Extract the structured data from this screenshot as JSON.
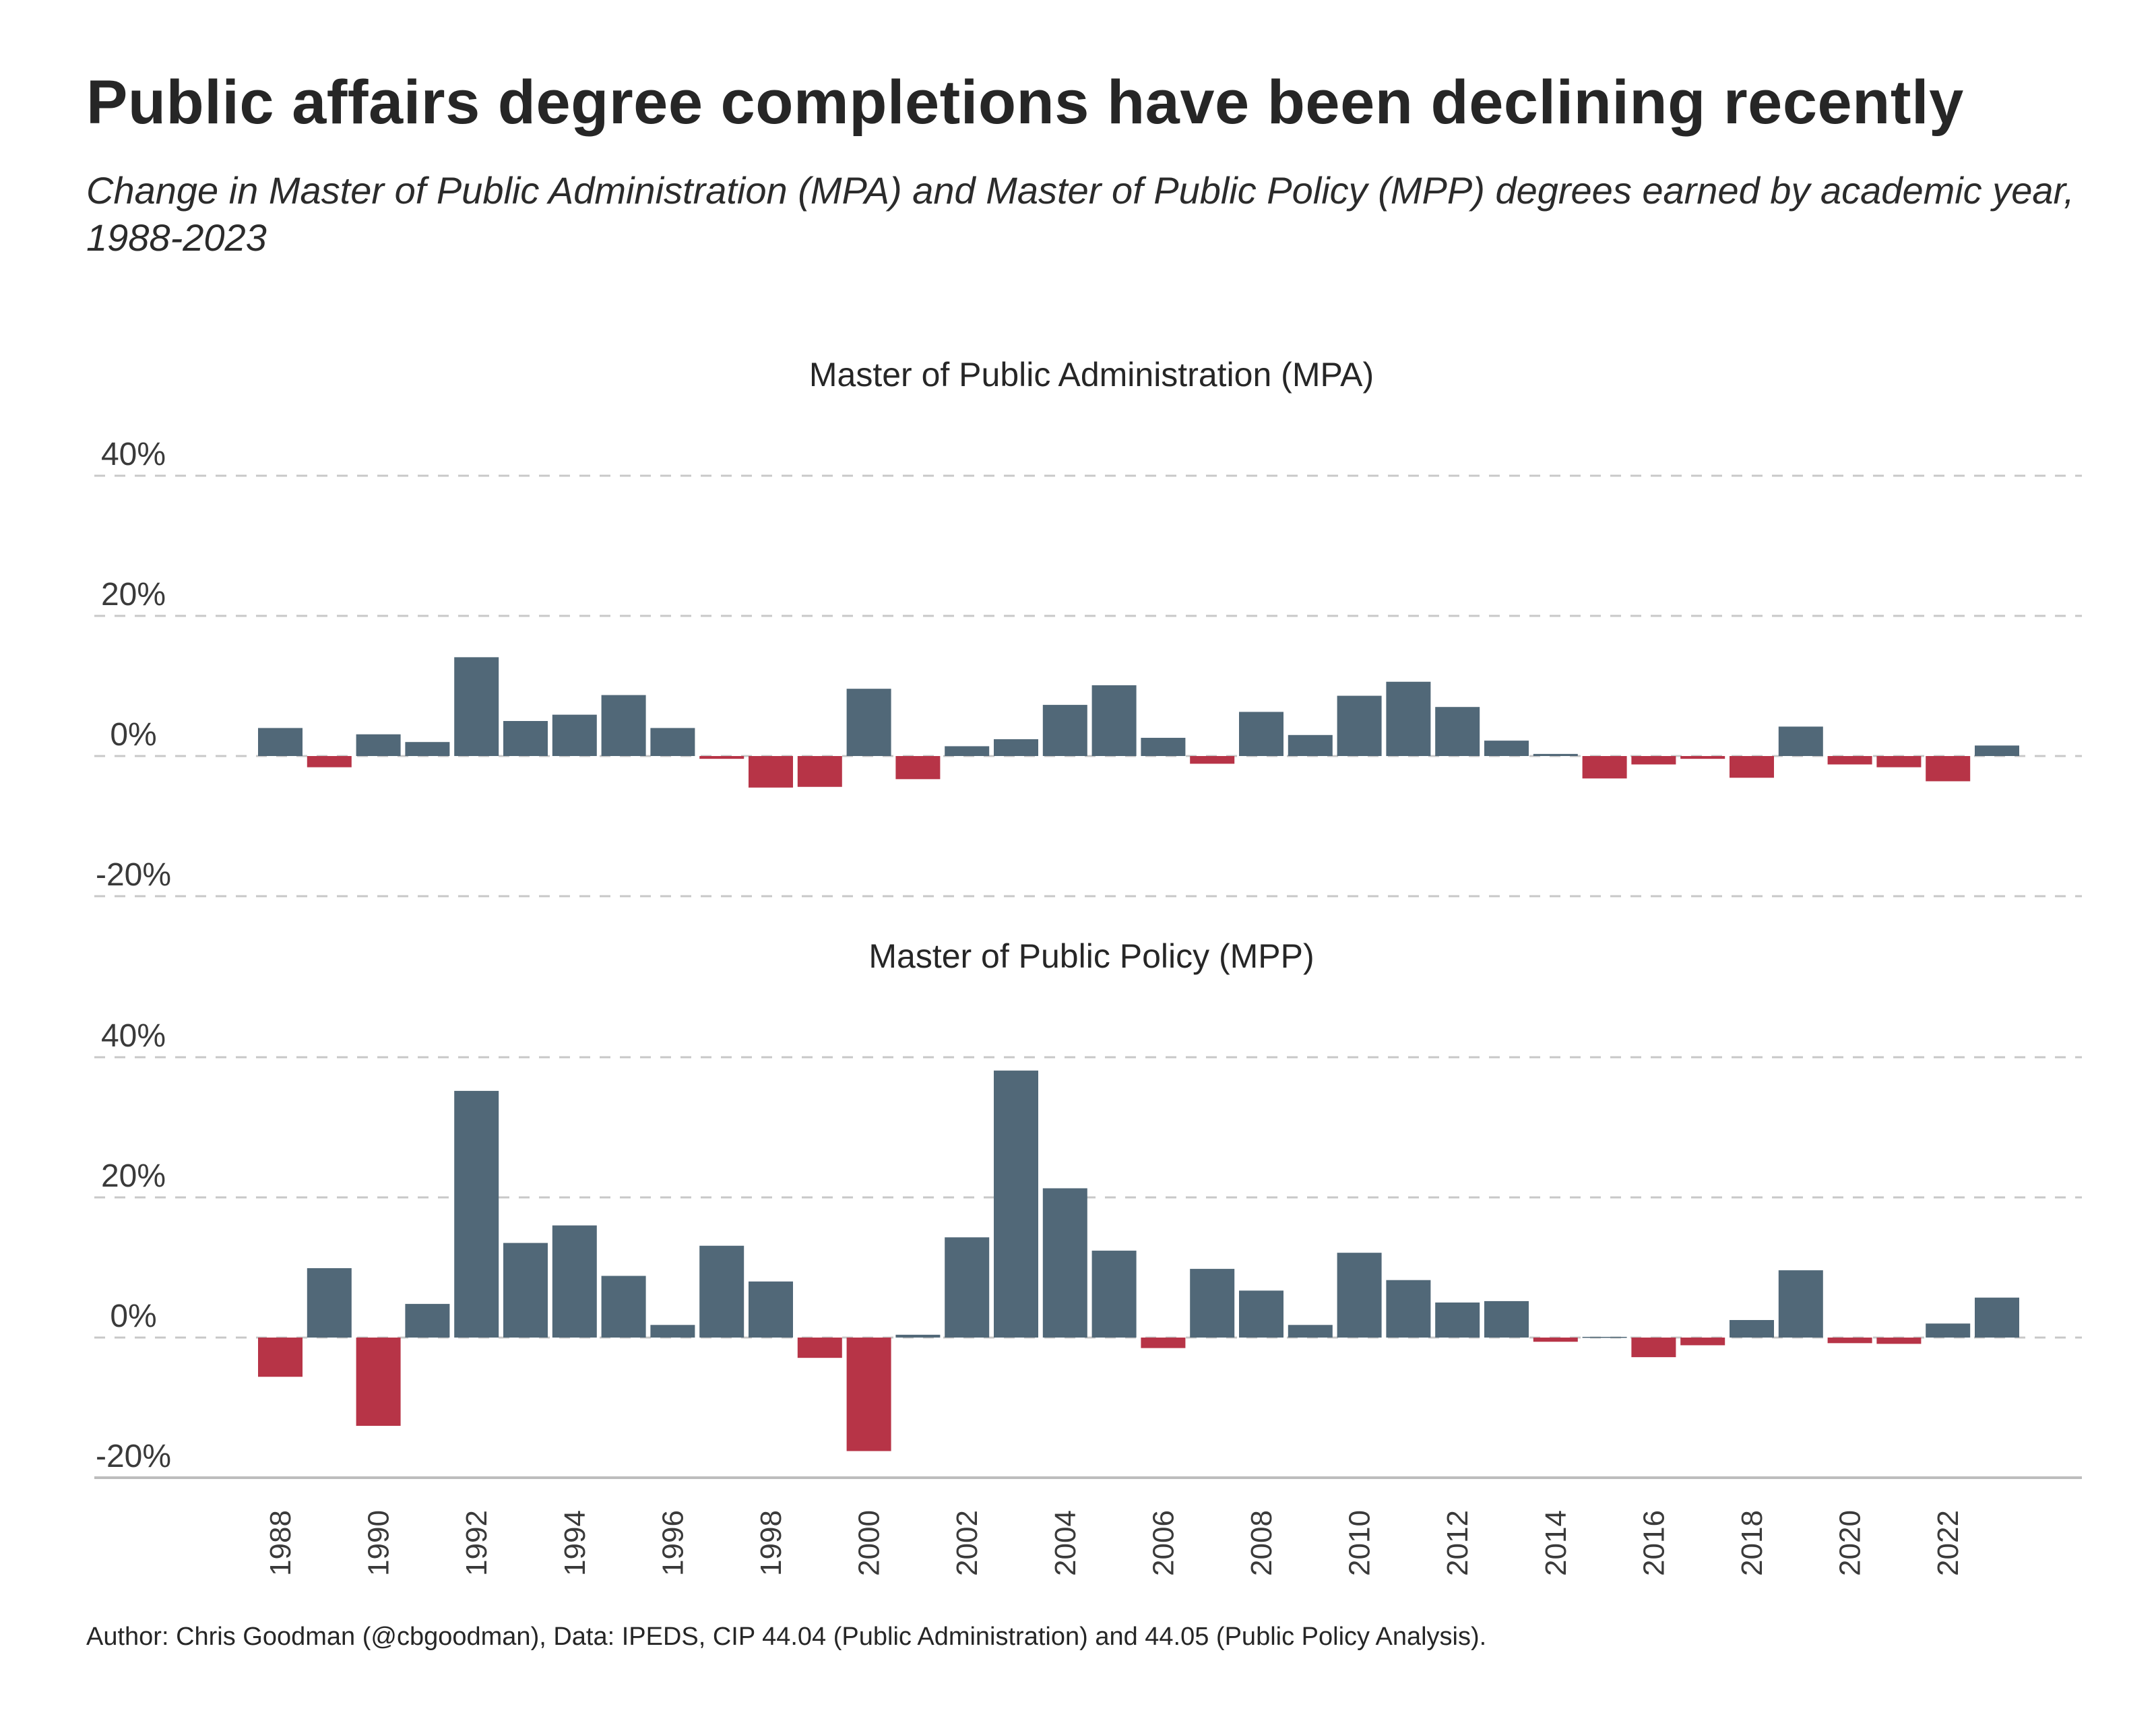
{
  "title": "Public affairs degree completions have been declining recently",
  "subtitle": "Change in Master of Public Administration (MPA) and Master of Public Policy (MPP) degrees earned by academic year, 1988-2023",
  "caption": "Author: Chris Goodman (@cbgoodman), Data: IPEDS, CIP 44.04 (Public Administration) and 44.05 (Public Policy Analysis).",
  "colors": {
    "positive": "#516878",
    "negative": "#b73447",
    "grid": "#c8c8c8",
    "axis": "#bdbdbd"
  },
  "chart_data": [
    {
      "type": "bar",
      "title": "Master of Public Administration (MPA)",
      "x": [
        1988,
        1989,
        1990,
        1991,
        1992,
        1993,
        1994,
        1995,
        1996,
        1997,
        1998,
        1999,
        2000,
        2001,
        2002,
        2003,
        2004,
        2005,
        2006,
        2007,
        2008,
        2009,
        2010,
        2011,
        2012,
        2013,
        2014,
        2015,
        2016,
        2017,
        2018,
        2019,
        2020,
        2021,
        2022,
        2023
      ],
      "values": [
        4,
        -1.6,
        3.1,
        2,
        14.1,
        5,
        5.9,
        8.7,
        4,
        -0.4,
        -4.5,
        -4.4,
        9.6,
        -3.3,
        1.4,
        2.4,
        7.3,
        10.1,
        2.6,
        -1.1,
        6.3,
        3,
        8.6,
        10.6,
        7,
        2.2,
        0.3,
        -3.2,
        -1.2,
        -0.4,
        -3.1,
        4.2,
        -1.2,
        -1.6,
        -3.6,
        1.5
      ],
      "ylim": [
        -20,
        40
      ],
      "yticks": [
        -20,
        0,
        20,
        40
      ],
      "ytick_labels": [
        "-20%",
        "0%",
        "20%",
        "40%"
      ],
      "grid": true
    },
    {
      "type": "bar",
      "title": "Master of Public Policy (MPP)",
      "x": [
        1988,
        1989,
        1990,
        1991,
        1992,
        1993,
        1994,
        1995,
        1996,
        1997,
        1998,
        1999,
        2000,
        2001,
        2002,
        2003,
        2004,
        2005,
        2006,
        2007,
        2008,
        2009,
        2010,
        2011,
        2012,
        2013,
        2014,
        2015,
        2016,
        2017,
        2018,
        2019,
        2020,
        2021,
        2022,
        2023
      ],
      "values": [
        -5.6,
        9.9,
        -12.6,
        4.8,
        35.2,
        13.5,
        16,
        8.8,
        1.8,
        13.1,
        8,
        -2.9,
        -16.2,
        0.4,
        14.3,
        38.1,
        21.3,
        12.4,
        -1.5,
        9.8,
        6.7,
        1.8,
        12.1,
        8.2,
        5,
        5.2,
        -0.6,
        0.1,
        -2.8,
        -1.1,
        2.5,
        9.6,
        -0.8,
        -0.9,
        2,
        5.7
      ],
      "ylim": [
        -20,
        40
      ],
      "yticks": [
        -20,
        0,
        20,
        40
      ],
      "ytick_labels": [
        "-20%",
        "0%",
        "20%",
        "40%"
      ],
      "xticks": [
        1988,
        1990,
        1992,
        1994,
        1996,
        1998,
        2000,
        2002,
        2004,
        2006,
        2008,
        2010,
        2012,
        2014,
        2016,
        2018,
        2020,
        2022
      ],
      "grid": true
    }
  ]
}
